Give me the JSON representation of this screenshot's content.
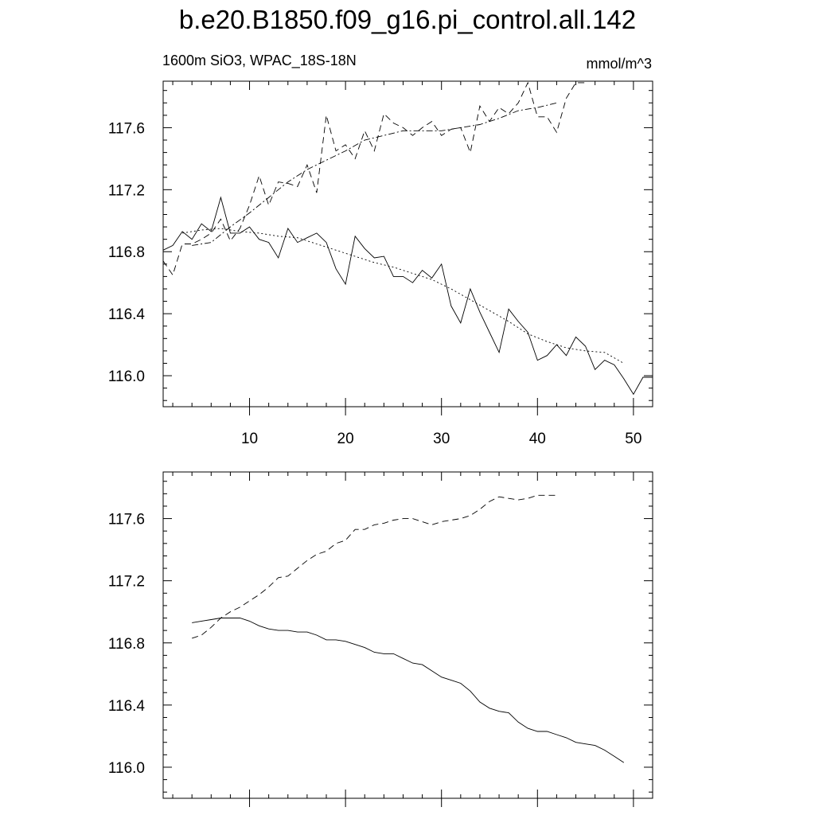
{
  "title": "b.e20.B1850.f09_g16.pi_control.all.142",
  "subtitle_left": "1600m SiO3, WPAC_18S-18N",
  "subtitle_right": "mmol/m^3",
  "chart_data": [
    {
      "type": "line",
      "xlim": [
        1,
        52
      ],
      "ylim": [
        115.8,
        117.9
      ],
      "xticks": [
        10,
        20,
        30,
        40,
        50
      ],
      "yticks": [
        116.0,
        116.4,
        116.8,
        117.2,
        117.6
      ],
      "series": [
        {
          "style": "solid",
          "x": [
            1,
            2,
            3,
            4,
            5,
            6,
            7,
            8,
            9,
            10,
            11,
            12,
            13,
            14,
            15,
            16,
            17,
            18,
            19,
            20,
            21,
            22,
            23,
            24,
            25,
            26,
            27,
            28,
            29,
            30,
            31,
            32,
            33,
            34,
            35,
            36,
            37,
            38,
            39,
            40,
            41,
            42,
            43,
            44,
            45,
            46,
            47,
            48,
            49,
            50,
            51,
            52
          ],
          "values": [
            116.81,
            116.84,
            116.93,
            116.88,
            116.98,
            116.93,
            117.15,
            116.92,
            116.92,
            116.96,
            116.88,
            116.86,
            116.76,
            116.95,
            116.86,
            116.89,
            116.92,
            116.86,
            116.69,
            116.59,
            116.9,
            116.82,
            116.76,
            116.77,
            116.64,
            116.64,
            116.6,
            116.68,
            116.63,
            116.72,
            116.45,
            116.34,
            116.56,
            116.41,
            116.28,
            116.15,
            116.43,
            116.35,
            116.28,
            116.1,
            116.13,
            116.2,
            116.13,
            116.25,
            116.19,
            116.04,
            116.1,
            116.07,
            115.98,
            115.88,
            115.99,
            115.99
          ]
        },
        {
          "style": "dashed",
          "x": [
            1,
            2,
            3,
            4,
            5,
            6,
            7,
            8,
            9,
            10,
            11,
            12,
            13,
            14,
            15,
            16,
            17,
            18,
            19,
            20,
            21,
            22,
            23,
            24,
            25,
            26,
            27,
            28,
            29,
            30,
            31,
            32,
            33,
            34,
            35,
            36,
            37,
            38,
            39,
            40,
            41,
            42,
            43,
            44,
            45
          ],
          "values": [
            116.74,
            116.65,
            116.85,
            116.85,
            116.88,
            116.92,
            117.01,
            116.87,
            116.95,
            117.1,
            117.29,
            117.1,
            117.25,
            117.24,
            117.22,
            117.36,
            117.18,
            117.68,
            117.45,
            117.49,
            117.4,
            117.58,
            117.45,
            117.69,
            117.63,
            117.6,
            117.55,
            117.6,
            117.64,
            117.55,
            117.59,
            117.6,
            117.44,
            117.74,
            117.64,
            117.73,
            117.69,
            117.76,
            117.89,
            117.67,
            117.67,
            117.57,
            117.79,
            117.89,
            117.89
          ]
        },
        {
          "style": "dotted",
          "x": [
            3,
            5,
            7,
            9,
            11,
            13,
            15,
            17,
            19,
            21,
            23,
            25,
            27,
            29,
            31,
            33,
            35,
            37,
            39,
            41,
            43,
            45,
            47,
            49
          ],
          "values": [
            116.92,
            116.94,
            116.95,
            116.93,
            116.92,
            116.9,
            116.89,
            116.85,
            116.81,
            116.77,
            116.73,
            116.7,
            116.66,
            116.62,
            116.56,
            116.49,
            116.42,
            116.35,
            116.27,
            116.22,
            116.18,
            116.16,
            116.15,
            116.08
          ]
        },
        {
          "style": "dashdot",
          "x": [
            4,
            6,
            8,
            10,
            12,
            14,
            16,
            18,
            20,
            22,
            24,
            26,
            28,
            30,
            32,
            34,
            36,
            38,
            40,
            42
          ],
          "values": [
            116.84,
            116.86,
            116.96,
            117.05,
            117.15,
            117.25,
            117.33,
            117.39,
            117.45,
            117.52,
            117.55,
            117.58,
            117.58,
            117.58,
            117.6,
            117.62,
            117.66,
            117.71,
            117.73,
            117.76
          ]
        }
      ]
    },
    {
      "type": "line",
      "xlim": [
        1,
        52
      ],
      "ylim": [
        115.8,
        117.9
      ],
      "xticks": [
        10,
        20,
        30,
        40,
        50
      ],
      "yticks": [
        116.0,
        116.4,
        116.8,
        117.2,
        117.6
      ],
      "series": [
        {
          "style": "solid",
          "x": [
            4,
            5,
            6,
            7,
            8,
            9,
            10,
            11,
            12,
            13,
            14,
            15,
            16,
            17,
            18,
            19,
            20,
            21,
            22,
            23,
            24,
            25,
            26,
            27,
            28,
            29,
            30,
            31,
            32,
            33,
            34,
            35,
            36,
            37,
            38,
            39,
            40,
            41,
            42,
            43,
            44,
            45,
            46,
            47,
            48,
            49
          ],
          "values": [
            116.93,
            116.94,
            116.95,
            116.96,
            116.96,
            116.96,
            116.94,
            116.91,
            116.89,
            116.88,
            116.88,
            116.87,
            116.87,
            116.85,
            116.82,
            116.82,
            116.81,
            116.79,
            116.77,
            116.74,
            116.73,
            116.73,
            116.7,
            116.67,
            116.66,
            116.62,
            116.58,
            116.56,
            116.54,
            116.49,
            116.42,
            116.38,
            116.36,
            116.35,
            116.29,
            116.25,
            116.23,
            116.23,
            116.21,
            116.19,
            116.16,
            116.15,
            116.14,
            116.11,
            116.07,
            116.03
          ]
        },
        {
          "style": "dashed",
          "x": [
            4,
            5,
            6,
            7,
            8,
            9,
            10,
            11,
            12,
            13,
            14,
            15,
            16,
            17,
            18,
            19,
            20,
            21,
            22,
            23,
            24,
            25,
            26,
            27,
            28,
            29,
            30,
            31,
            32,
            33,
            34,
            35,
            36,
            37,
            38,
            39,
            40,
            41,
            42
          ],
          "values": [
            116.83,
            116.85,
            116.9,
            116.96,
            117.0,
            117.03,
            117.07,
            117.11,
            117.16,
            117.22,
            117.23,
            117.28,
            117.33,
            117.37,
            117.39,
            117.44,
            117.46,
            117.53,
            117.53,
            117.56,
            117.57,
            117.59,
            117.6,
            117.6,
            117.58,
            117.56,
            117.58,
            117.59,
            117.6,
            117.62,
            117.66,
            117.71,
            117.74,
            117.73,
            117.72,
            117.73,
            117.75,
            117.75,
            117.75
          ]
        }
      ]
    }
  ]
}
